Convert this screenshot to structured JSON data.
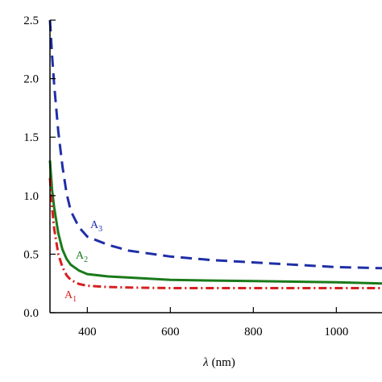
{
  "chart_data": {
    "type": "line",
    "title": "",
    "xlabel": "(nm)",
    "xlabel_symbol": "λ",
    "ylabel": "",
    "xlim": [
      310,
      1110
    ],
    "ylim": [
      0,
      2.5
    ],
    "xticks": [
      400,
      600,
      800,
      1000
    ],
    "xtick_labels": [
      "400",
      "600",
      "800",
      "1000"
    ],
    "yticks": [
      0.0,
      0.5,
      1.0,
      1.5,
      2.0,
      2.5
    ],
    "ytick_labels": [
      "0.0",
      "0.5",
      "1.0",
      "1.5",
      "2.0",
      "2.5"
    ],
    "grid": false,
    "legend": "inline labels",
    "series": [
      {
        "name": "A3",
        "label_main": "A",
        "label_sub": "3",
        "color": "#1f2fa8",
        "dash": "dashed",
        "x": [
          310,
          315,
          320,
          330,
          340,
          350,
          360,
          380,
          400,
          450,
          500,
          600,
          700,
          800,
          900,
          1000,
          1110
        ],
        "y": [
          2.5,
          2.2,
          1.95,
          1.55,
          1.25,
          1.02,
          0.87,
          0.73,
          0.65,
          0.58,
          0.53,
          0.48,
          0.45,
          0.43,
          0.41,
          0.39,
          0.38
        ]
      },
      {
        "name": "A2",
        "label_main": "A",
        "label_sub": "2",
        "color": "#1a7a1a",
        "dash": "solid",
        "x": [
          310,
          315,
          320,
          330,
          340,
          350,
          360,
          380,
          400,
          450,
          500,
          600,
          700,
          800,
          900,
          1000,
          1110
        ],
        "y": [
          1.3,
          1.05,
          0.9,
          0.68,
          0.54,
          0.46,
          0.41,
          0.36,
          0.33,
          0.31,
          0.3,
          0.28,
          0.275,
          0.27,
          0.265,
          0.26,
          0.25
        ]
      },
      {
        "name": "A1",
        "label_main": "A",
        "label_sub": "1",
        "color": "#d62020",
        "dash": "dashdot",
        "x": [
          310,
          315,
          320,
          330,
          340,
          350,
          360,
          380,
          400,
          450,
          500,
          600,
          700,
          800,
          900,
          1000,
          1110
        ],
        "y": [
          1.15,
          0.9,
          0.72,
          0.5,
          0.39,
          0.32,
          0.28,
          0.245,
          0.23,
          0.22,
          0.215,
          0.21,
          0.21,
          0.21,
          0.21,
          0.21,
          0.21
        ]
      }
    ]
  }
}
